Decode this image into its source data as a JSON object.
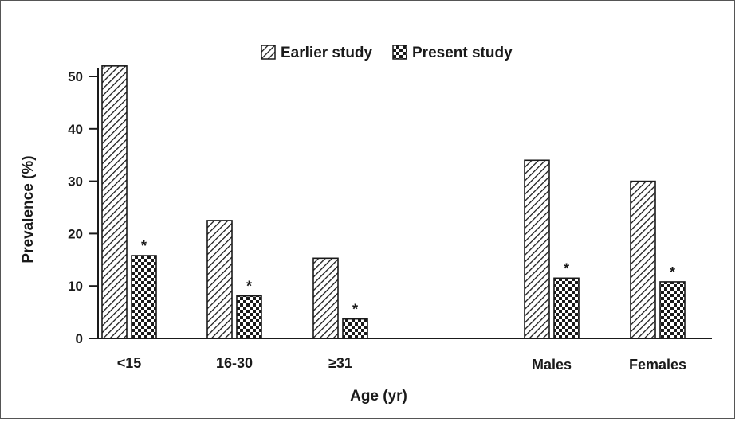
{
  "chart_data": {
    "type": "bar",
    "categories": [
      "<15",
      "16-30",
      "≥31",
      "Males",
      "Females"
    ],
    "series": [
      {
        "name": "Earlier study",
        "values": [
          52,
          22.5,
          15.3,
          34,
          30
        ],
        "pattern": "diagonal-hatch"
      },
      {
        "name": "Present study",
        "values": [
          15.8,
          8.1,
          3.7,
          11.5,
          10.8
        ],
        "pattern": "checkerboard",
        "significance": [
          "*",
          "*",
          "*",
          "*",
          "*"
        ]
      }
    ],
    "xlabel": "Age (yr)",
    "ylabel": "Prevalence (%)",
    "ylim": [
      0,
      55
    ],
    "yticks": [
      0,
      10,
      20,
      30,
      40,
      50
    ],
    "grid": false,
    "legend_position": "top-center",
    "colors": {
      "ink": "#1a1a1a",
      "fill": "#ffffff"
    }
  }
}
